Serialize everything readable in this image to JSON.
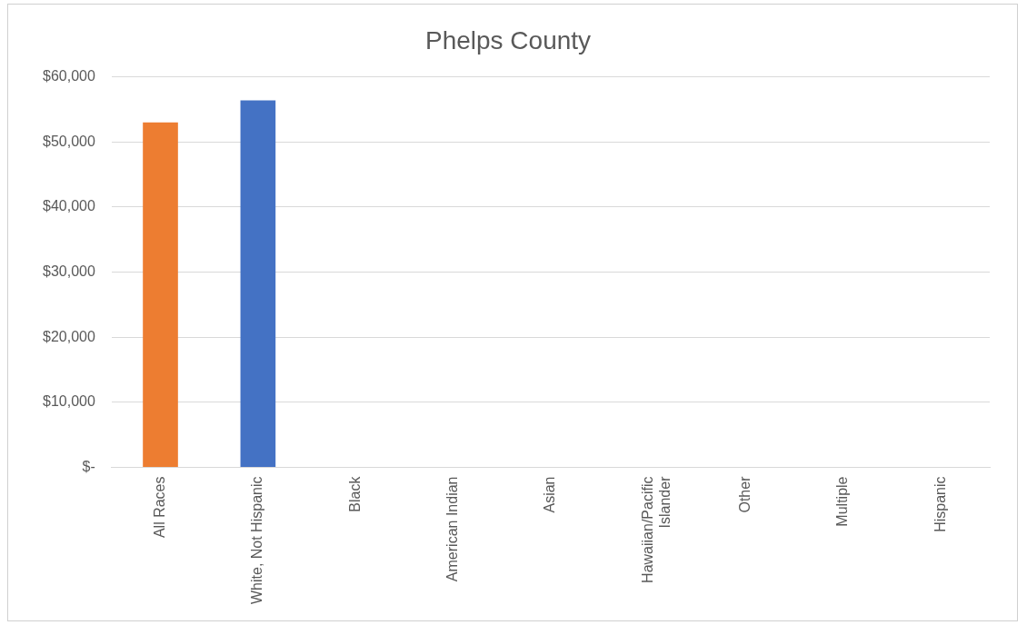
{
  "chart_data": {
    "type": "bar",
    "title": "Phelps County",
    "categories": [
      "All Races",
      "White, Not Hispanic",
      "Black",
      "American Indian",
      "Asian",
      "Hawaiian/Pacific Islander",
      "Other",
      "Multiple",
      "Hispanic"
    ],
    "values": [
      53000,
      56400,
      null,
      null,
      null,
      null,
      null,
      null,
      null
    ],
    "colors": [
      "#ed7d31",
      "#4472c4",
      null,
      null,
      null,
      null,
      null,
      null,
      null
    ],
    "ylim": [
      0,
      60000
    ],
    "yticks": [
      {
        "value": 0,
        "label": "$-"
      },
      {
        "value": 10000,
        "label": "$10,000"
      },
      {
        "value": 20000,
        "label": "$20,000"
      },
      {
        "value": 30000,
        "label": "$30,000"
      },
      {
        "value": 40000,
        "label": "$40,000"
      },
      {
        "value": 50000,
        "label": "$50,000"
      },
      {
        "value": 60000,
        "label": "$60,000"
      }
    ],
    "grid": "y"
  }
}
